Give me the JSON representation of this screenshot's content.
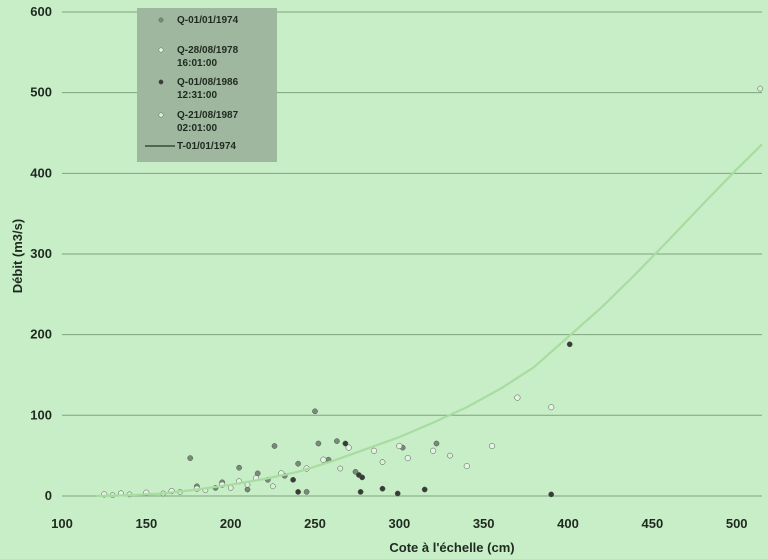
{
  "chart_data": {
    "type": "scatter",
    "xlabel": "Cote à l'échelle (cm)",
    "ylabel": "Débit (m3/s)",
    "xlim": [
      100,
      515
    ],
    "ylim": [
      -5,
      600
    ],
    "x_ticks": [
      "100",
      "150",
      "200",
      "250",
      "300",
      "350",
      "400",
      "450",
      "500"
    ],
    "y_ticks": [
      "0",
      "100",
      "200",
      "300",
      "400",
      "500",
      "600"
    ],
    "grid": "horizontal",
    "legend_position": "top-left",
    "colors": {
      "background": "#c8eec8",
      "gridline": "#7fa27f",
      "legend_box": "#9fb69f",
      "curve": "#a8dca0",
      "series_1974": "#7a8a7a",
      "series_1978": "#e4f3e4",
      "series_1986": "#3a3a3a",
      "series_1987": "#d9f0d6"
    },
    "series": [
      {
        "name": "Q-01/01/1974",
        "kind": "points",
        "points": [
          [
            176,
            47
          ],
          [
            205,
            35
          ],
          [
            222,
            20
          ],
          [
            226,
            62
          ],
          [
            250,
            105
          ],
          [
            252,
            65
          ],
          [
            263,
            68
          ],
          [
            274,
            30
          ],
          [
            302,
            60
          ],
          [
            322,
            65
          ],
          [
            210,
            8
          ],
          [
            232,
            25
          ],
          [
            180,
            12
          ],
          [
            195,
            17
          ],
          [
            240,
            40
          ],
          [
            258,
            45
          ],
          [
            191,
            10
          ],
          [
            216,
            28
          ],
          [
            245,
            5
          ]
        ]
      },
      {
        "name": "Q-28/08/1978\n16:01:00",
        "kind": "points",
        "points": [
          [
            125,
            2
          ],
          [
            135,
            3
          ],
          [
            150,
            4
          ],
          [
            165,
            6
          ],
          [
            180,
            9
          ],
          [
            195,
            14
          ],
          [
            205,
            18
          ],
          [
            215,
            22
          ],
          [
            230,
            28
          ],
          [
            245,
            34
          ],
          [
            255,
            45
          ],
          [
            270,
            60
          ],
          [
            285,
            56
          ],
          [
            300,
            62
          ],
          [
            305,
            47
          ],
          [
            320,
            56
          ],
          [
            340,
            37
          ],
          [
            355,
            62
          ],
          [
            370,
            122
          ],
          [
            390,
            110
          ]
        ]
      },
      {
        "name": "Q-01/08/1986\n12:31:00",
        "kind": "points",
        "points": [
          [
            276,
            26
          ],
          [
            278,
            23
          ],
          [
            277,
            5
          ],
          [
            290,
            9
          ],
          [
            299,
            3
          ],
          [
            315,
            8
          ],
          [
            390,
            2
          ],
          [
            401,
            188
          ],
          [
            268,
            65
          ],
          [
            240,
            5
          ],
          [
            237,
            20
          ]
        ]
      },
      {
        "name": "Q-21/08/1987\n02:01:00",
        "kind": "points",
        "points": [
          [
            130,
            1
          ],
          [
            140,
            2
          ],
          [
            160,
            3
          ],
          [
            170,
            5
          ],
          [
            185,
            7
          ],
          [
            200,
            10
          ],
          [
            210,
            14
          ],
          [
            225,
            12
          ],
          [
            265,
            34
          ],
          [
            290,
            42
          ],
          [
            330,
            50
          ],
          [
            514,
            505
          ]
        ]
      },
      {
        "name": "T-01/01/1974",
        "kind": "line",
        "points": [
          [
            120,
            0
          ],
          [
            140,
            1
          ],
          [
            160,
            3
          ],
          [
            180,
            8
          ],
          [
            200,
            14
          ],
          [
            220,
            21
          ],
          [
            240,
            30
          ],
          [
            260,
            43
          ],
          [
            280,
            58
          ],
          [
            300,
            73
          ],
          [
            320,
            91
          ],
          [
            340,
            110
          ],
          [
            360,
            133
          ],
          [
            380,
            160
          ],
          [
            400,
            197
          ],
          [
            420,
            234
          ],
          [
            440,
            275
          ],
          [
            460,
            318
          ],
          [
            480,
            362
          ],
          [
            500,
            405
          ],
          [
            515,
            436
          ]
        ]
      }
    ]
  }
}
